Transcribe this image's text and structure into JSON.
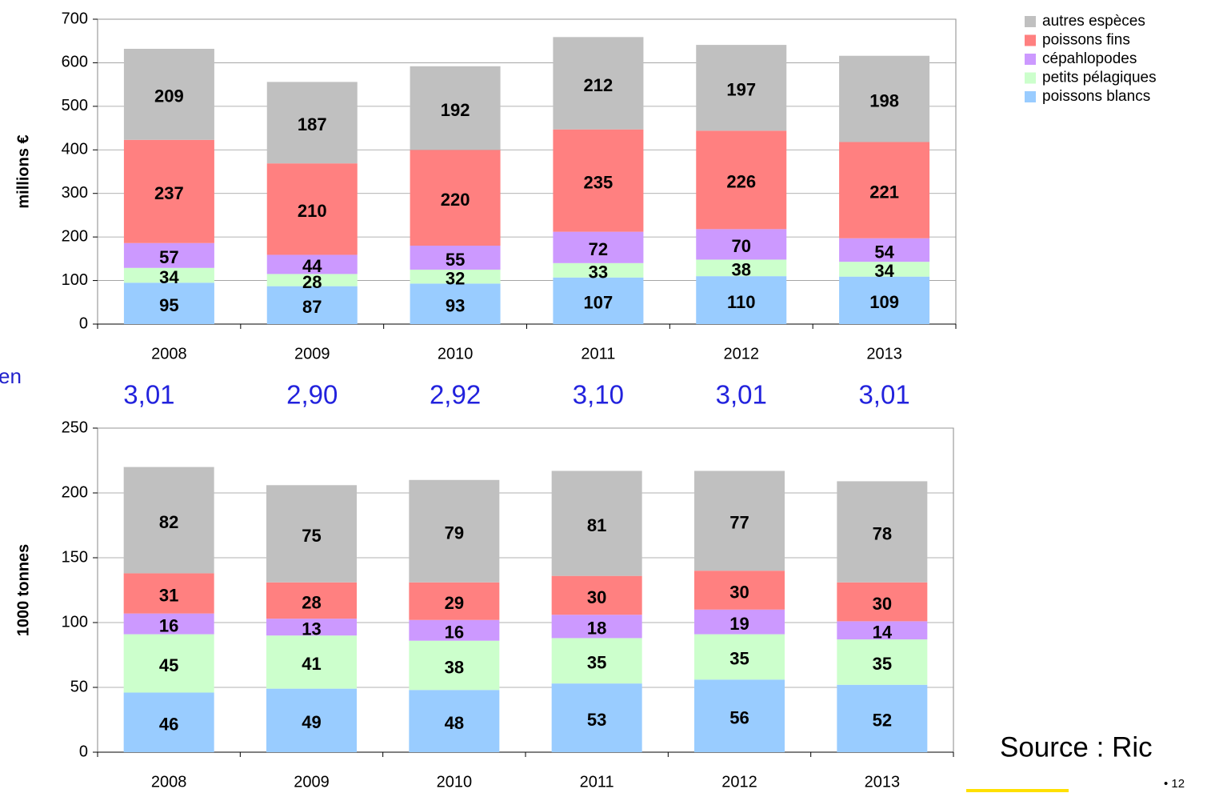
{
  "chart_data": [
    {
      "type": "stacked_bar",
      "y_label": "millions €",
      "categories": [
        "2008",
        "2009",
        "2010",
        "2011",
        "2012",
        "2013"
      ],
      "series": [
        {
          "name": "poissons blancs",
          "color": "#99ccff",
          "values": [
            95,
            87,
            93,
            107,
            110,
            109
          ]
        },
        {
          "name": "petits pélagiques",
          "color": "#ccffcc",
          "values": [
            34,
            28,
            32,
            33,
            38,
            34
          ]
        },
        {
          "name": "cépahlopodes",
          "color": "#cc99ff",
          "values": [
            57,
            44,
            55,
            72,
            70,
            54
          ]
        },
        {
          "name": "poissons fins",
          "color": "#ff8080",
          "values": [
            237,
            210,
            220,
            235,
            226,
            221
          ]
        },
        {
          "name": "autres espèces",
          "color": "#c0c0c0",
          "values": [
            209,
            187,
            192,
            212,
            197,
            198
          ]
        }
      ],
      "ylim": [
        0,
        700
      ],
      "yticks": [
        0,
        100,
        200,
        300,
        400,
        500,
        600,
        700
      ],
      "grid": true,
      "legend": "right"
    },
    {
      "type": "stacked_bar",
      "y_label": "1000 tonnes",
      "categories": [
        "2008",
        "2009",
        "2010",
        "2011",
        "2012",
        "2013"
      ],
      "series": [
        {
          "color": "#99ccff",
          "values": [
            46,
            49,
            48,
            53,
            56,
            52
          ]
        },
        {
          "color": "#ccffcc",
          "values": [
            45,
            41,
            38,
            35,
            35,
            35
          ]
        },
        {
          "color": "#cc99ff",
          "values": [
            16,
            13,
            16,
            18,
            19,
            14
          ]
        },
        {
          "color": "#ff8080",
          "values": [
            31,
            28,
            29,
            30,
            30,
            30
          ]
        },
        {
          "color": "#c0c0c0",
          "values": [
            82,
            75,
            79,
            81,
            77,
            78
          ]
        }
      ],
      "ylim": [
        0,
        250
      ],
      "yticks": [
        0,
        50,
        100,
        150,
        200,
        250
      ],
      "grid": true
    }
  ],
  "price_labels": [
    "3,01",
    "2,90",
    "2,92",
    "3,10",
    "3,01",
    "3,01"
  ],
  "side_text": "en",
  "source": "Source : Ric",
  "page_number": "• 12"
}
